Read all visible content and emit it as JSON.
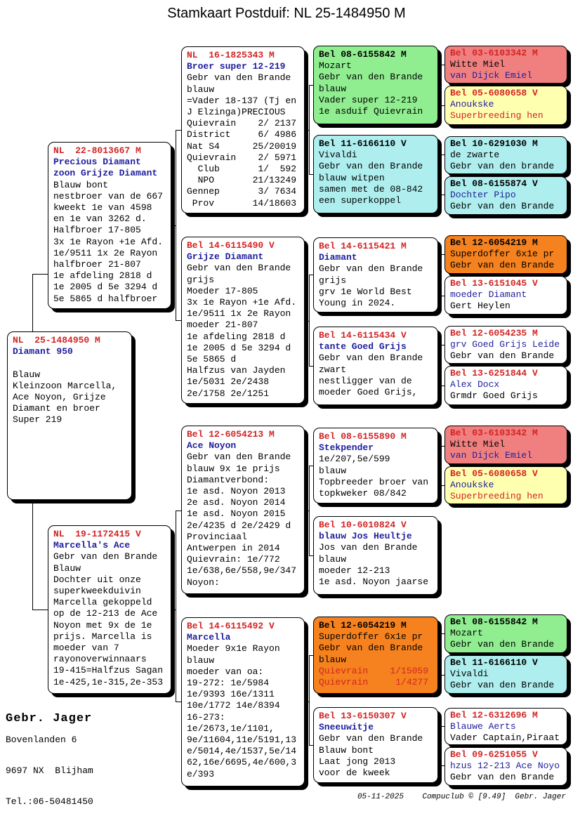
{
  "title": "Stamkaart Postduif: NL  25-1484950 M",
  "owner": {
    "name": "Gebr. Jager",
    "address_line1": "Bovenlanden 6",
    "address_line2": "9697 NX  Blijham",
    "phone": "Tel.:06-50481450"
  },
  "footer_credits": "05-11-2025    Compuclub © [9.49]  Gebr. Jager",
  "palette": {
    "white": "#ffffff",
    "green": "#90EE90",
    "cyan": "#AEEEEE",
    "pink": "#F08080",
    "yellow": "#FFFFB0",
    "orange": "#F5821E",
    "red_text": "#d32424",
    "blue_text": "#1e1e9c",
    "black_text": "#000000"
  },
  "boxes": [
    {
      "key": "subject",
      "bg": "white",
      "lines": [
        {
          "t": "NL  25-1484950 M",
          "c": "red",
          "b": true
        },
        {
          "t": "Diamant 950",
          "c": "blue",
          "b": true
        },
        {
          "t": "",
          "c": "black"
        },
        {
          "t": "Blauw",
          "c": "black"
        },
        {
          "t": "Kleinzoon Marcella,",
          "c": "black"
        },
        {
          "t": "Ace Noyon, Grijze",
          "c": "black"
        },
        {
          "t": "Diamant en broer",
          "c": "black"
        },
        {
          "t": "Super 219",
          "c": "black"
        }
      ]
    },
    {
      "key": "father",
      "bg": "white",
      "lines": [
        {
          "t": "NL  22-8013667 M",
          "c": "red",
          "b": true
        },
        {
          "t": "Precious Diamant",
          "c": "blue",
          "b": true
        },
        {
          "t": "zoon Grijze Diamant",
          "c": "blue",
          "b": true
        },
        {
          "t": "Blauw bont",
          "c": "black"
        },
        {
          "t": "nestbroer van de 667",
          "c": "black"
        },
        {
          "t": "kweekt 1e van 4598",
          "c": "black"
        },
        {
          "t": "en 1e van 3262 d.",
          "c": "black"
        },
        {
          "t": "Halfbroer 17-805",
          "c": "black"
        },
        {
          "t": "3x 1e Rayon +1e Afd.",
          "c": "black"
        },
        {
          "t": "1e/9511 1x 2e Rayon",
          "c": "black"
        },
        {
          "t": "halfbroer 21-807",
          "c": "black"
        },
        {
          "t": "1e afdeling 2818 d",
          "c": "black"
        },
        {
          "t": "1e 2005 d 5e 3294 d",
          "c": "black"
        },
        {
          "t": "5e 5865 d halfbroer",
          "c": "black"
        }
      ]
    },
    {
      "key": "mother",
      "bg": "white",
      "lines": [
        {
          "t": "NL  19-1172415 V",
          "c": "red",
          "b": true
        },
        {
          "t": "Marcella's Ace",
          "c": "blue",
          "b": true
        },
        {
          "t": "Gebr van den Brande",
          "c": "black"
        },
        {
          "t": "Blauw",
          "c": "black"
        },
        {
          "t": "Dochter uit onze",
          "c": "black"
        },
        {
          "t": "superkweekduivin",
          "c": "black"
        },
        {
          "t": "Marcella gekoppeld",
          "c": "black"
        },
        {
          "t": "op de 12-213 de Ace",
          "c": "black"
        },
        {
          "t": "Noyon met 9x de 1e",
          "c": "black"
        },
        {
          "t": "prijs. Marcella is",
          "c": "black"
        },
        {
          "t": "moeder van 7",
          "c": "black"
        },
        {
          "t": "rayonoverwinnaars",
          "c": "black"
        },
        {
          "t": "19-415=Halfzus Sagan",
          "c": "black"
        },
        {
          "t": "1e-425,1e-315,2e-353",
          "c": "black"
        }
      ]
    },
    {
      "key": "gp1",
      "bg": "white",
      "lines": [
        {
          "t": "NL  16-1825343 M",
          "c": "red",
          "b": true
        },
        {
          "t": "Broer super 12-219",
          "c": "blue",
          "b": true
        },
        {
          "t": "Gebr van den Brande",
          "c": "black"
        },
        {
          "t": "blauw",
          "c": "black"
        },
        {
          "t": "=Vader 18-137 (Tj en",
          "c": "black"
        },
        {
          "t": "J Elzinga)PRECIOUS",
          "c": "black"
        },
        {
          "t": "Quievrain    2/ 2137",
          "c": "black"
        },
        {
          "t": "District     6/ 4986",
          "c": "black"
        },
        {
          "t": "Nat S4      25/20019",
          "c": "black"
        },
        {
          "t": "Quievrain    2/ 5971",
          "c": "black"
        },
        {
          "t": "  Club       1/  592",
          "c": "black"
        },
        {
          "t": "  NPO       21/13249",
          "c": "black"
        },
        {
          "t": "Gennep       3/ 7634",
          "c": "black"
        },
        {
          "t": " Prov       14/18603",
          "c": "black"
        }
      ]
    },
    {
      "key": "gp2",
      "bg": "white",
      "lines": [
        {
          "t": "Bel 14-6115490 V",
          "c": "red",
          "b": true
        },
        {
          "t": "Grijze Diamant",
          "c": "blue",
          "b": true
        },
        {
          "t": "Gebr van den Brande",
          "c": "black"
        },
        {
          "t": "grijs",
          "c": "black"
        },
        {
          "t": "Moeder 17-805",
          "c": "black"
        },
        {
          "t": "3x 1e Rayon +1e Afd.",
          "c": "black"
        },
        {
          "t": "1e/9511 1x 2e Rayon",
          "c": "black"
        },
        {
          "t": "moeder 21-807",
          "c": "black"
        },
        {
          "t": "1e afdeling 2818 d",
          "c": "black"
        },
        {
          "t": "1e 2005 d 5e 3294 d",
          "c": "black"
        },
        {
          "t": "5e 5865 d",
          "c": "black"
        },
        {
          "t": "Halfzus van Jayden",
          "c": "black"
        },
        {
          "t": "1e/5031 2e/2438",
          "c": "black"
        },
        {
          "t": "2e/1758 2e/1251",
          "c": "black"
        }
      ]
    },
    {
      "key": "gp3",
      "bg": "white",
      "lines": [
        {
          "t": "Bel 12-6054213 M",
          "c": "red",
          "b": true
        },
        {
          "t": "Ace Noyon",
          "c": "blue",
          "b": true
        },
        {
          "t": "Gebr van den Brande",
          "c": "black"
        },
        {
          "t": "blauw 9x 1e prijs",
          "c": "black"
        },
        {
          "t": "Diamantverbond:",
          "c": "black"
        },
        {
          "t": "1e asd. Noyon 2013",
          "c": "black"
        },
        {
          "t": "2e asd. Noyon 2014",
          "c": "black"
        },
        {
          "t": "1e asd. Noyon 2015",
          "c": "black"
        },
        {
          "t": "2e/4235 d 2e/2429 d",
          "c": "black"
        },
        {
          "t": "Provinciaal",
          "c": "black"
        },
        {
          "t": "Antwerpen in 2014",
          "c": "black"
        },
        {
          "t": "Quievrain: 1e/772",
          "c": "black"
        },
        {
          "t": "1e/638,6e/558,9e/347",
          "c": "black"
        },
        {
          "t": "Noyon:",
          "c": "black"
        }
      ]
    },
    {
      "key": "gp4",
      "bg": "white",
      "lines": [
        {
          "t": "Bel 14-6115492 V",
          "c": "red",
          "b": true
        },
        {
          "t": "Marcella",
          "c": "blue",
          "b": true
        },
        {
          "t": "Moeder 9x1e Rayon",
          "c": "black"
        },
        {
          "t": "blauw",
          "c": "black"
        },
        {
          "t": "moeder van oa:",
          "c": "black"
        },
        {
          "t": "19-272: 1e/5984",
          "c": "black"
        },
        {
          "t": "1e/9393 16e/1311",
          "c": "black"
        },
        {
          "t": "10e/1772 14e/8394",
          "c": "black"
        },
        {
          "t": "16-273:",
          "c": "black"
        },
        {
          "t": "1e/2673,1e/1101,",
          "c": "black"
        },
        {
          "t": "9e/11604,11e/5191,13",
          "c": "black"
        },
        {
          "t": "e/5014,4e/1537,5e/14",
          "c": "black"
        },
        {
          "t": "62,16e/6695,4e/600,3",
          "c": "black"
        },
        {
          "t": "e/393",
          "c": "black"
        }
      ]
    },
    {
      "key": "ggp1",
      "bg": "green",
      "lines": [
        {
          "t": "Bel 08-6155842 M",
          "c": "black",
          "b": true
        },
        {
          "t": "Mozart",
          "c": "black"
        },
        {
          "t": "Gebr van den Brande",
          "c": "black"
        },
        {
          "t": "blauw",
          "c": "black"
        },
        {
          "t": "Vader super 12-219",
          "c": "black"
        },
        {
          "t": "1e asduif Quievrain",
          "c": "black"
        }
      ]
    },
    {
      "key": "ggp2",
      "bg": "cyan",
      "lines": [
        {
          "t": "Bel 11-6166110 V",
          "c": "black",
          "b": true
        },
        {
          "t": "Vivaldi",
          "c": "black"
        },
        {
          "t": "Gebr van den Brande",
          "c": "black"
        },
        {
          "t": "blauw witpen",
          "c": "black"
        },
        {
          "t": "samen met de 08-842",
          "c": "black"
        },
        {
          "t": "een superkoppel",
          "c": "black"
        }
      ]
    },
    {
      "key": "ggp3",
      "bg": "white",
      "lines": [
        {
          "t": "Bel 14-6115421 M",
          "c": "red",
          "b": true
        },
        {
          "t": "Diamant",
          "c": "blue",
          "b": true
        },
        {
          "t": "Gebr van den Brande",
          "c": "black"
        },
        {
          "t": "grijs",
          "c": "black"
        },
        {
          "t": "grv 1e World Best",
          "c": "black"
        },
        {
          "t": "Young in 2024.",
          "c": "black"
        }
      ]
    },
    {
      "key": "ggp4",
      "bg": "white",
      "lines": [
        {
          "t": "Bel 14-6115434 V",
          "c": "red",
          "b": true
        },
        {
          "t": "tante Goed Grijs",
          "c": "blue",
          "b": true
        },
        {
          "t": "Gebr van den Brande",
          "c": "black"
        },
        {
          "t": "zwart",
          "c": "black"
        },
        {
          "t": "nestligger van de",
          "c": "black"
        },
        {
          "t": "moeder Goed Grijs,",
          "c": "black"
        }
      ]
    },
    {
      "key": "ggp5",
      "bg": "white",
      "lines": [
        {
          "t": "Bel 08-6155890 M",
          "c": "red",
          "b": true
        },
        {
          "t": "Stekpender",
          "c": "blue",
          "b": true
        },
        {
          "t": "1e/207,5e/599",
          "c": "black"
        },
        {
          "t": "blauw",
          "c": "black"
        },
        {
          "t": "Topbreeder broer van",
          "c": "black"
        },
        {
          "t": "topkweker 08/842",
          "c": "black"
        }
      ]
    },
    {
      "key": "ggp6",
      "bg": "white",
      "lines": [
        {
          "t": "Bel 10-6010824 V",
          "c": "red",
          "b": true
        },
        {
          "t": "blauw Jos Heultje",
          "c": "blue",
          "b": true
        },
        {
          "t": "Jos van den Brande",
          "c": "black"
        },
        {
          "t": "blauw",
          "c": "black"
        },
        {
          "t": "moeder 12-213",
          "c": "black"
        },
        {
          "t": "1e asd. Noyon jaarse",
          "c": "black"
        }
      ]
    },
    {
      "key": "ggp7",
      "bg": "orange",
      "lines": [
        {
          "t": "Bel 12-6054219 M",
          "c": "black",
          "b": true
        },
        {
          "t": "Superdoffer 6x1e pr",
          "c": "black"
        },
        {
          "t": "Gebr van den Brande",
          "c": "black"
        },
        {
          "t": "blauw",
          "c": "black"
        },
        {
          "t": "Quievrain    1/15059",
          "c": "red"
        },
        {
          "t": "Quievrain     1/4277",
          "c": "red"
        }
      ]
    },
    {
      "key": "ggp8",
      "bg": "white",
      "lines": [
        {
          "t": "Bel 13-6150307 V",
          "c": "red",
          "b": true
        },
        {
          "t": "Sneeuwitje",
          "c": "blue",
          "b": true
        },
        {
          "t": "Gebr van den Brande",
          "c": "black"
        },
        {
          "t": "Blauw bont",
          "c": "black"
        },
        {
          "t": "Laat jong 2013",
          "c": "black"
        },
        {
          "t": "voor de kweek",
          "c": "black"
        }
      ]
    },
    {
      "key": "gggp1",
      "bg": "pink",
      "lines": [
        {
          "t": "Bel 03-6103342 M",
          "c": "red",
          "b": true
        },
        {
          "t": "Witte Miel",
          "c": "black"
        },
        {
          "t": "van Dijck Emiel",
          "c": "blue"
        }
      ]
    },
    {
      "key": "gggp2",
      "bg": "yellow",
      "lines": [
        {
          "t": "Bel 05-6080658 V",
          "c": "red",
          "b": true
        },
        {
          "t": "Anoukske",
          "c": "blue"
        },
        {
          "t": "Superbreeding hen",
          "c": "red"
        }
      ]
    },
    {
      "key": "gggp3",
      "bg": "cyan",
      "lines": [
        {
          "t": "Bel 10-6291030 M",
          "c": "black",
          "b": true
        },
        {
          "t": "de zwarte",
          "c": "black"
        },
        {
          "t": "Gebr van den brande",
          "c": "black"
        }
      ]
    },
    {
      "key": "gggp4",
      "bg": "cyan",
      "lines": [
        {
          "t": "Bel 08-6155874 V",
          "c": "black",
          "b": true
        },
        {
          "t": "Dochter Pipo",
          "c": "blue"
        },
        {
          "t": "Gebr van den Brande",
          "c": "black"
        }
      ]
    },
    {
      "key": "gggp5",
      "bg": "orange",
      "lines": [
        {
          "t": "Bel 12-6054219 M",
          "c": "black",
          "b": true
        },
        {
          "t": "Superdoffer 6x1e pr",
          "c": "black"
        },
        {
          "t": "Gebr van den Brande",
          "c": "black"
        }
      ]
    },
    {
      "key": "gggp6",
      "bg": "white",
      "lines": [
        {
          "t": "Bel 13-6151045 V",
          "c": "red",
          "b": true
        },
        {
          "t": "moeder Diamant",
          "c": "blue"
        },
        {
          "t": "Gert Heylen",
          "c": "black"
        }
      ]
    },
    {
      "key": "gggp7",
      "bg": "white",
      "lines": [
        {
          "t": "Bel 12-6054235 M",
          "c": "red",
          "b": true
        },
        {
          "t": "grv Goed Grijs Leide",
          "c": "blue"
        },
        {
          "t": "Gebr van den Brande",
          "c": "black"
        }
      ]
    },
    {
      "key": "gggp8",
      "bg": "white",
      "lines": [
        {
          "t": "Bel 13-6251844 V",
          "c": "red",
          "b": true
        },
        {
          "t": "Alex Docx",
          "c": "blue"
        },
        {
          "t": "Grmdr Goed Grijs",
          "c": "black"
        }
      ]
    },
    {
      "key": "gggp9",
      "bg": "pink",
      "lines": [
        {
          "t": "Bel 03-6103342 M",
          "c": "red",
          "b": true
        },
        {
          "t": "Witte Miel",
          "c": "black"
        },
        {
          "t": "van Dijck Emiel",
          "c": "blue"
        }
      ]
    },
    {
      "key": "gggp10",
      "bg": "yellow",
      "lines": [
        {
          "t": "Bel 05-6080658 V",
          "c": "red",
          "b": true
        },
        {
          "t": "Anoukske",
          "c": "blue"
        },
        {
          "t": "Superbreeding hen",
          "c": "red"
        }
      ]
    },
    {
      "key": "gggp13",
      "bg": "green",
      "lines": [
        {
          "t": "Bel 08-6155842 M",
          "c": "black",
          "b": true
        },
        {
          "t": "Mozart",
          "c": "black"
        },
        {
          "t": "Gebr van den Brande",
          "c": "black"
        }
      ]
    },
    {
      "key": "gggp14",
      "bg": "cyan",
      "lines": [
        {
          "t": "Bel 11-6166110 V",
          "c": "black",
          "b": true
        },
        {
          "t": "Vivaldi",
          "c": "black"
        },
        {
          "t": "Gebr van den Brande",
          "c": "black"
        }
      ]
    },
    {
      "key": "gggp15",
      "bg": "white",
      "lines": [
        {
          "t": "Bel 12-6312696 M",
          "c": "red",
          "b": true
        },
        {
          "t": "Blauwe Aerts",
          "c": "blue"
        },
        {
          "t": "Vader Captain,Piraat",
          "c": "black"
        }
      ]
    },
    {
      "key": "gggp16",
      "bg": "white",
      "lines": [
        {
          "t": "Bel 09-6251055 V",
          "c": "red",
          "b": true
        },
        {
          "t": "hzus 12-213 Ace Noyo",
          "c": "blue"
        },
        {
          "t": "Gebr van den Brande",
          "c": "black"
        }
      ]
    }
  ]
}
